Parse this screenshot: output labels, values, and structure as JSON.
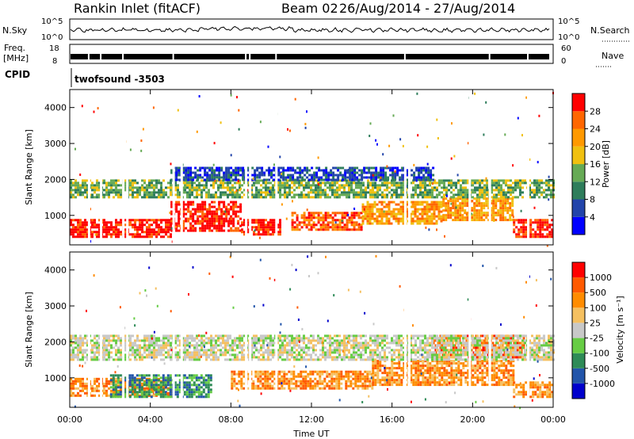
{
  "title": {
    "station": "Rankin Inlet (fitACF)",
    "beam": "Beam 02",
    "dates": "26/Aug/2014 - 27/Aug/2014"
  },
  "top_panels": {
    "nsky_label": "N.Sky",
    "nsearch_label": "N.Search",
    "nsky_ticks": [
      "10^5",
      "10^0"
    ],
    "nsearch_ticks": [
      "10^5",
      "10^0"
    ],
    "freq_label": "Freq.",
    "freq_unit": "[MHz]",
    "freq_ticks": [
      "18",
      "8"
    ],
    "nave_label": "Nave",
    "nave_ticks": [
      "60",
      "0"
    ],
    "cpid_label": "CPID",
    "cpid_value": "twofsound -3503"
  },
  "x_axis": {
    "label": "Time UT",
    "ticks": [
      "00:00",
      "04:00",
      "08:00",
      "12:00",
      "16:00",
      "20:00",
      "00:00"
    ]
  },
  "chart_data": [
    {
      "type": "heatmap",
      "name": "power",
      "xlabel": "Time UT",
      "ylabel": "Slant Range [km]",
      "x_range_hours": [
        0,
        24
      ],
      "y_range_km": [
        180,
        4500
      ],
      "y_ticks": [
        "1000",
        "2000",
        "3000",
        "4000"
      ],
      "colorbar": {
        "label": "Power [dB]",
        "ticks": [
          "28",
          "24",
          "20",
          "16",
          "12",
          "8",
          "4"
        ],
        "colors": [
          "#0000ff",
          "#2244aa",
          "#2e7d5b",
          "#66aa55",
          "#f0c010",
          "#ff9900",
          "#ff6600",
          "#ff0000"
        ]
      },
      "bands": [
        {
          "hours": [
            0.0,
            5.0
          ],
          "km": [
            400,
            900
          ],
          "level": 7
        },
        {
          "hours": [
            5.0,
            8.5
          ],
          "km": [
            600,
            1400
          ],
          "level": 7
        },
        {
          "hours": [
            8.5,
            10.5
          ],
          "km": [
            450,
            900
          ],
          "level": 7
        },
        {
          "hours": [
            11.0,
            14.5
          ],
          "km": [
            600,
            1100
          ],
          "level": 6
        },
        {
          "hours": [
            14.5,
            18.5
          ],
          "km": [
            800,
            1400
          ],
          "level": 5
        },
        {
          "hours": [
            18.5,
            22.0
          ],
          "km": [
            900,
            1500
          ],
          "level": 5
        },
        {
          "hours": [
            22.0,
            24.0
          ],
          "km": [
            400,
            900
          ],
          "level": 7
        },
        {
          "hours": [
            0.0,
            24.0
          ],
          "km": [
            1500,
            2000
          ],
          "level": 3
        },
        {
          "hours": [
            5.0,
            18.0
          ],
          "km": [
            2000,
            2350
          ],
          "level": 1
        }
      ]
    },
    {
      "type": "heatmap",
      "name": "velocity",
      "xlabel": "Time UT",
      "ylabel": "Slant Range [km]",
      "x_range_hours": [
        0,
        24
      ],
      "y_range_km": [
        180,
        4500
      ],
      "y_ticks": [
        "1000",
        "2000",
        "3000",
        "4000"
      ],
      "colorbar": {
        "label": "Velocity [m s⁻¹]",
        "ticks": [
          "1000",
          "500",
          "100",
          "25",
          "-25",
          "-100",
          "-500",
          "-1000"
        ],
        "colors": [
          "#0000cc",
          "#2255aa",
          "#2e8b57",
          "#66cc44",
          "#c8c8c8",
          "#f5c060",
          "#ff8c00",
          "#ff5a00",
          "#ff0000"
        ]
      },
      "bands": [
        {
          "hours": [
            0.0,
            5.0
          ],
          "km": [
            500,
            1000
          ],
          "level": 6
        },
        {
          "hours": [
            2.0,
            7.0
          ],
          "km": [
            500,
            1100
          ],
          "level": 2
        },
        {
          "hours": [
            8.0,
            15.0
          ],
          "km": [
            700,
            1200
          ],
          "level": 6
        },
        {
          "hours": [
            15.0,
            22.0
          ],
          "km": [
            800,
            1500
          ],
          "level": 6
        },
        {
          "hours": [
            18.0,
            22.5
          ],
          "km": [
            1600,
            2200
          ],
          "level": 7
        },
        {
          "hours": [
            0.0,
            24.0
          ],
          "km": [
            1500,
            2200
          ],
          "level": 4
        },
        {
          "hours": [
            22.0,
            24.0
          ],
          "km": [
            500,
            900
          ],
          "level": 6
        }
      ]
    }
  ]
}
